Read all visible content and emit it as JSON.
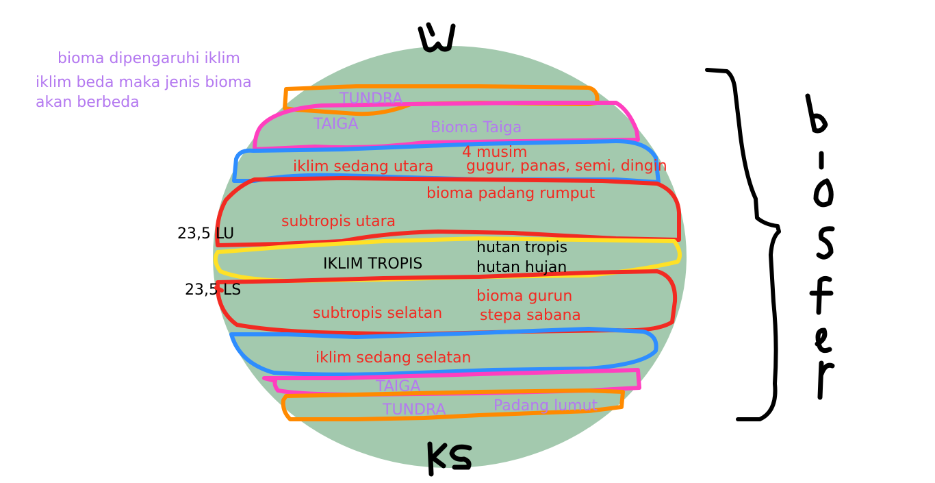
{
  "colors": {
    "globe": "#a3c9ae",
    "red": "#f22a22",
    "purple": "#b479f0",
    "black": "#000000",
    "orange": "#ff8a00",
    "pink": "#ff3fbf",
    "blue": "#2e8dff",
    "yellow": "#ffe126"
  },
  "notes": {
    "line1": "bioma dipengaruhi iklim",
    "line2": "iklim beda maka jenis bioma",
    "line3": "akan berbeda"
  },
  "handwriting": {
    "top": "U",
    "bottom": "KS",
    "side_word": "biosfer"
  },
  "latitudes": {
    "north": "23,5 LU",
    "south": "23,5 LS"
  },
  "zones": {
    "tundra_n": "TUNDRA",
    "taiga_n": "TAIGA",
    "bioma_taiga": "Bioma Taiga",
    "empat_musim": "4 musim",
    "iklim_sedang_utara": "iklim sedang utara",
    "musim_list": "gugur, panas, semi, dingin",
    "padang_rumput": "bioma padang rumput",
    "subtropis_utara": "subtropis utara",
    "hutan_tropis": "hutan tropis",
    "iklim_tropis": "IKLIM TROPIS",
    "hutan_hujan": "hutan hujan",
    "bioma_gurun": "bioma gurun",
    "subtropis_selatan": "subtropis selatan",
    "stepa_sabana": "stepa sabana",
    "iklim_sedang_selatan": "iklim sedang selatan",
    "taiga_s": "TAIGA",
    "tundra_s": "TUNDRA",
    "padang_lumut": "Padang lumut"
  }
}
